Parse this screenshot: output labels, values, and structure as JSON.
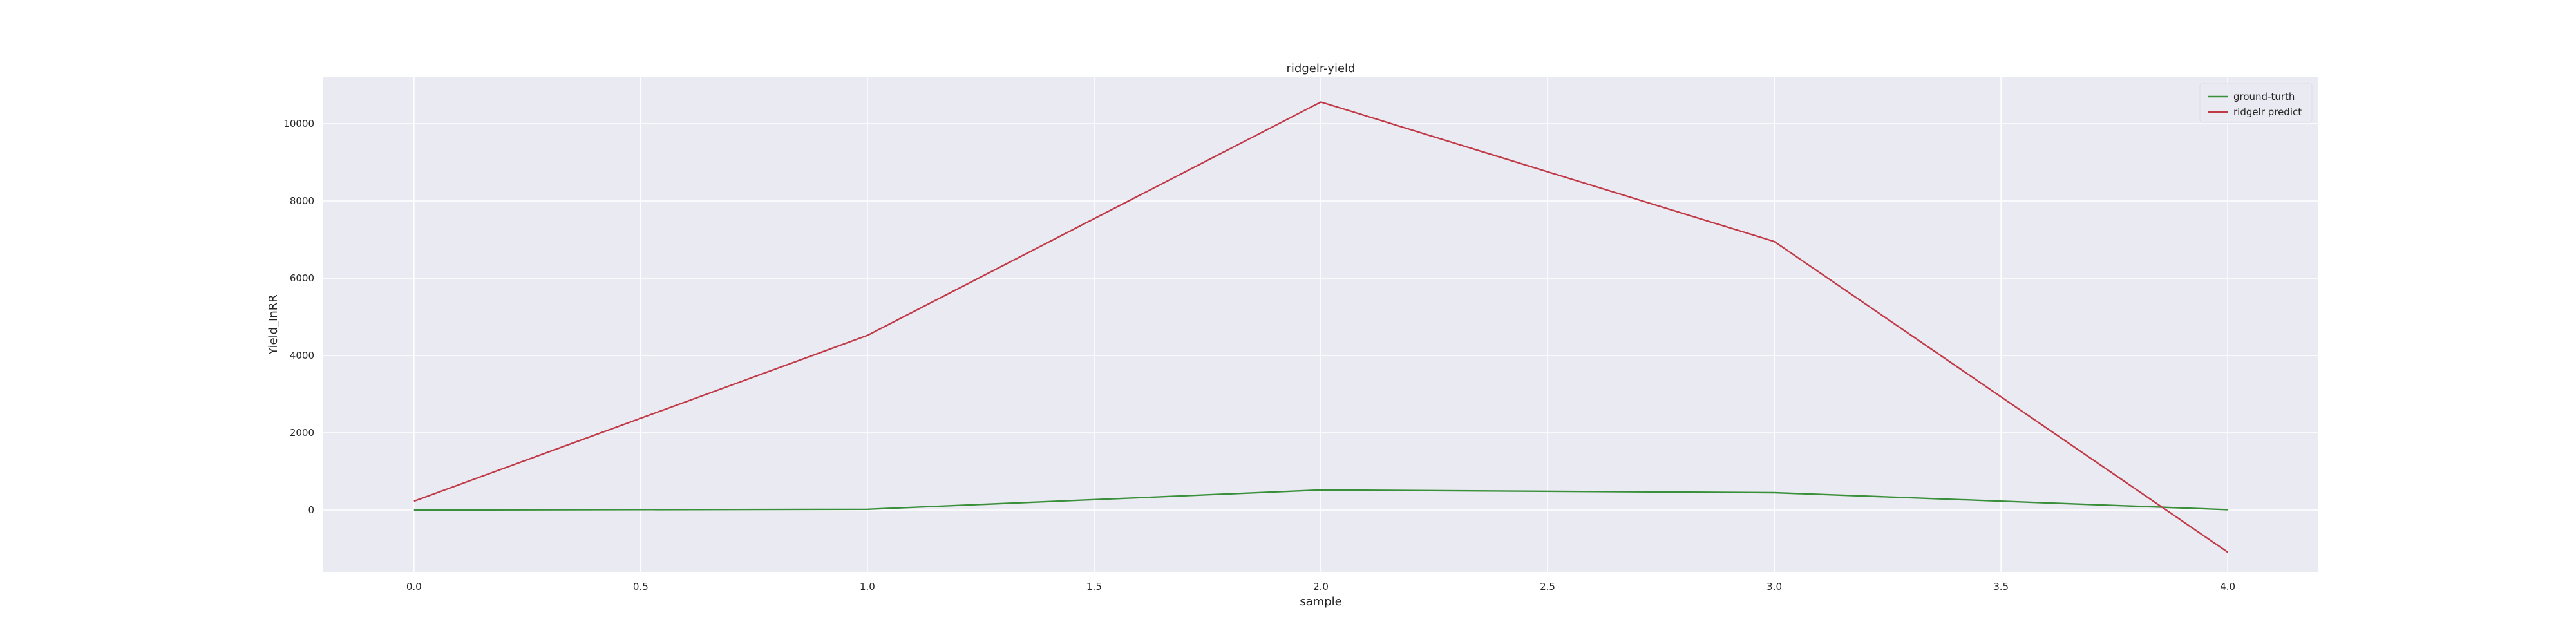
{
  "chart_data": {
    "type": "line",
    "title": "ridgelr-yield",
    "xlabel": "sample",
    "ylabel": "Yield_InRR",
    "xlim": [
      -0.2,
      4.2
    ],
    "ylim": [
      -1600,
      11200
    ],
    "xticks": [
      0.0,
      0.5,
      1.0,
      1.5,
      2.0,
      2.5,
      3.0,
      3.5,
      4.0
    ],
    "xtick_labels": [
      "0.0",
      "0.5",
      "1.0",
      "1.5",
      "2.0",
      "2.5",
      "3.0",
      "3.5",
      "4.0"
    ],
    "yticks": [
      0,
      2000,
      4000,
      6000,
      8000,
      10000
    ],
    "ytick_labels": [
      "0",
      "2000",
      "4000",
      "6000",
      "8000",
      "10000"
    ],
    "grid": true,
    "legend_position": "top-right",
    "x": [
      0,
      1,
      2,
      3,
      4
    ],
    "series": [
      {
        "name": "ground-turth",
        "color": "#3a8f3a",
        "values": [
          0,
          20,
          520,
          450,
          10
        ]
      },
      {
        "name": "ridgelr predict",
        "color": "#c03a48",
        "values": [
          230,
          4520,
          10560,
          6950,
          -1090
        ]
      }
    ],
    "colors": {
      "background": "#eaeaf2",
      "grid": "#ffffff"
    }
  }
}
